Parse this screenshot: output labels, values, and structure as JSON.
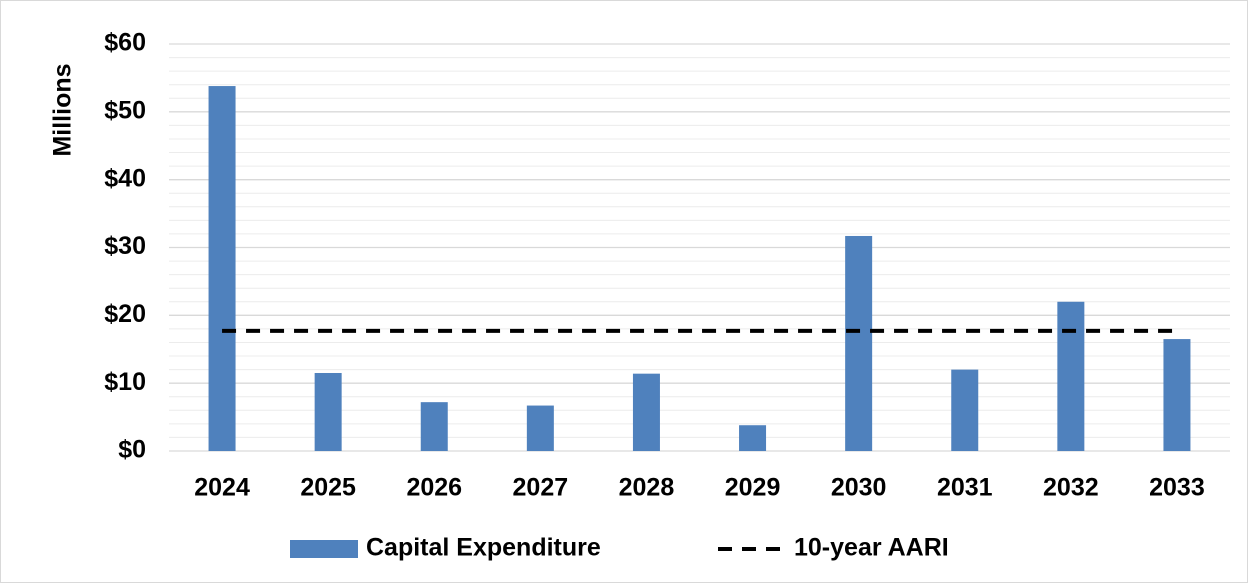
{
  "chart_data": {
    "type": "bar",
    "y_label": "Millions",
    "categories": [
      "2024",
      "2025",
      "2026",
      "2027",
      "2028",
      "2029",
      "2030",
      "2031",
      "2032",
      "2033"
    ],
    "series": [
      {
        "name": "Capital Expenditure",
        "type": "bar",
        "color": "#4f81bd",
        "values": [
          53.8,
          11.5,
          7.2,
          6.7,
          11.4,
          3.8,
          31.7,
          12.0,
          22.0,
          16.5
        ]
      },
      {
        "name": "10-year AARI",
        "type": "line",
        "dashed": true,
        "color": "#000000",
        "values": [
          17.7,
          17.7,
          17.7,
          17.7,
          17.7,
          17.7,
          17.7,
          17.7,
          17.7,
          17.7
        ]
      }
    ],
    "ylim": [
      0,
      60
    ],
    "yticks": [
      {
        "value": 0,
        "label": "$0"
      },
      {
        "value": 10,
        "label": "$10"
      },
      {
        "value": 20,
        "label": "$20"
      },
      {
        "value": 30,
        "label": "$30"
      },
      {
        "value": 40,
        "label": "$40"
      },
      {
        "value": 50,
        "label": "$50"
      },
      {
        "value": 60,
        "label": "$60"
      }
    ],
    "minor_yticks": [
      2,
      4,
      6,
      8,
      12,
      14,
      16,
      18,
      22,
      24,
      26,
      28,
      32,
      34,
      36,
      38,
      42,
      44,
      46,
      48,
      52,
      54,
      56,
      58
    ],
    "grid": true,
    "legend": "bottom"
  }
}
